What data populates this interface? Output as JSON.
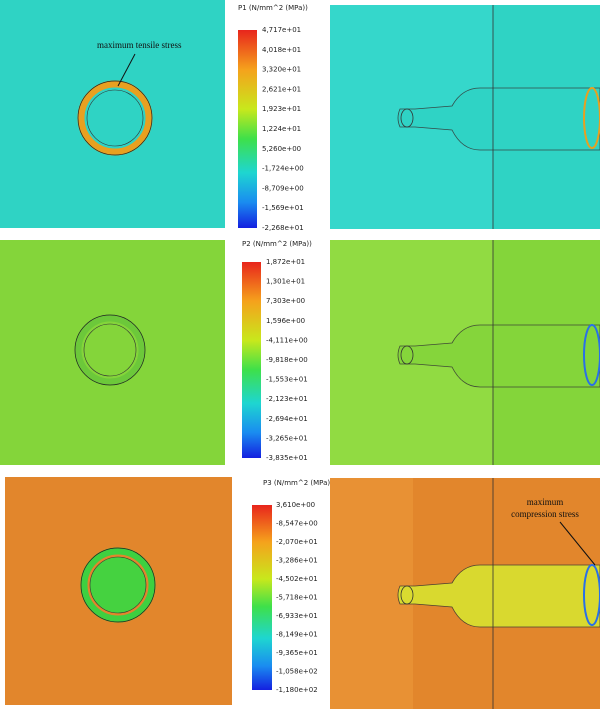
{
  "panels": [
    {
      "legend": {
        "title": "P1 (N/mm^2 (MPa))",
        "labels": [
          "4,717e+01",
          "4,018e+01",
          "3,320e+01",
          "2,621e+01",
          "1,923e+01",
          "1,224e+01",
          "5,260e+00",
          "-1,724e+00",
          "-8,709e+00",
          "-1,569e+01",
          "-2,268e+01"
        ]
      }
    },
    {
      "legend": {
        "title": "P2 (N/mm^2 (MPa))",
        "labels": [
          "1,872e+01",
          "1,301e+01",
          "7,303e+00",
          "1,596e+00",
          "-4,111e+00",
          "-9,818e+00",
          "-1,553e+01",
          "-2,123e+01",
          "-2,694e+01",
          "-3,265e+01",
          "-3,835e+01"
        ]
      }
    },
    {
      "legend": {
        "title": "P3 (N/mm^2 (MPa))",
        "labels": [
          "3,610e+00",
          "-8,547e+00",
          "-2,070e+01",
          "-3,286e+01",
          "-4,502e+01",
          "-5,718e+01",
          "-6,933e+01",
          "-8,149e+01",
          "-9,365e+01",
          "-1,058e+02",
          "-1,180e+02"
        ]
      }
    }
  ],
  "annotations": {
    "tensile": "maximum tensile stress",
    "compression": [
      "maximum",
      "compression stress"
    ]
  }
}
